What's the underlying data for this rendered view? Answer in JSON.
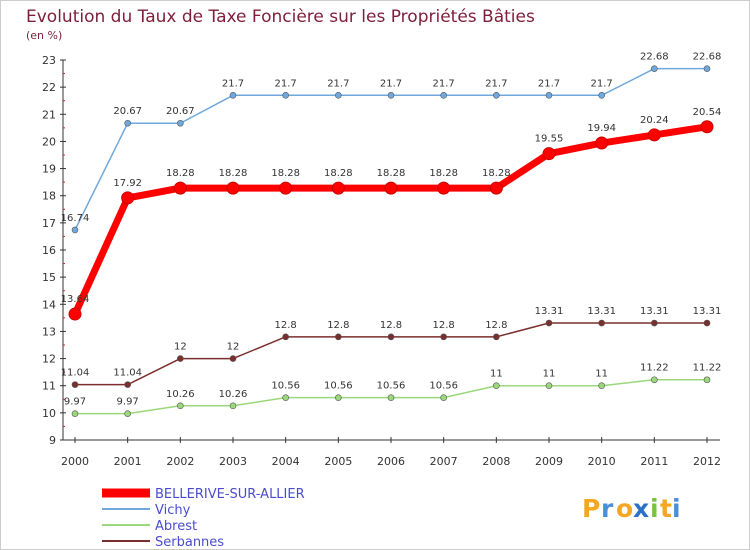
{
  "chart_data": {
    "type": "line",
    "title": "Evolution du Taux de Taxe Foncière sur les Propriétés Bâties",
    "subtitle": "(en %)",
    "x": [
      "2000",
      "2001",
      "2002",
      "2003",
      "2004",
      "2005",
      "2006",
      "2007",
      "2008",
      "2009",
      "2010",
      "2011",
      "2012"
    ],
    "ylim": [
      9,
      23
    ],
    "yticks": [
      "9",
      "10",
      "11",
      "12",
      "13",
      "14",
      "15",
      "16",
      "17",
      "18",
      "19",
      "20",
      "21",
      "22",
      "23"
    ],
    "series": [
      {
        "name": "BELLERIVE-SUR-ALLIER",
        "color": "#ff0000",
        "values": [
          13.64,
          17.92,
          18.28,
          18.28,
          18.28,
          18.28,
          18.28,
          18.28,
          18.28,
          19.55,
          19.94,
          20.24,
          20.54
        ],
        "labels": [
          "13.64",
          "17.92",
          "18.28",
          "18.28",
          "18.28",
          "18.28",
          "18.28",
          "18.28",
          "18.28",
          "19.55",
          "19.94",
          "20.24",
          "20.54"
        ]
      },
      {
        "name": "Vichy",
        "color": "#6fa8dc",
        "values": [
          16.74,
          20.67,
          20.67,
          21.7,
          21.7,
          21.7,
          21.7,
          21.7,
          21.7,
          21.7,
          21.7,
          22.68,
          22.68
        ],
        "labels": [
          "16.74",
          "20.67",
          "20.67",
          "21.7",
          "21.7",
          "21.7",
          "21.7",
          "21.7",
          "21.7",
          "21.7",
          "21.7",
          "22.68",
          "22.68"
        ]
      },
      {
        "name": "Abrest",
        "color": "#9bd77b",
        "values": [
          9.97,
          9.97,
          10.26,
          10.26,
          10.56,
          10.56,
          10.56,
          10.56,
          11,
          11,
          11,
          11.22,
          11.22
        ],
        "labels": [
          "9.97",
          "9.97",
          "10.26",
          "10.26",
          "10.56",
          "10.56",
          "10.56",
          "10.56",
          "11",
          "11",
          "11",
          "11.22",
          "11.22"
        ]
      },
      {
        "name": "Serbannes",
        "color": "#7b2e2e",
        "values": [
          11.04,
          11.04,
          12,
          12,
          12.8,
          12.8,
          12.8,
          12.8,
          12.8,
          13.31,
          13.31,
          13.31,
          13.31
        ],
        "labels": [
          "11.04",
          "11.04",
          "12",
          "12",
          "12.8",
          "12.8",
          "12.8",
          "12.8",
          "12.8",
          "13.31",
          "13.31",
          "13.31",
          "13.31"
        ]
      }
    ],
    "legend_position": "bottom-left",
    "grid": false
  },
  "logo": {
    "letters": [
      "P",
      "r",
      "o",
      "x",
      "i",
      "t",
      "i"
    ],
    "colors": [
      "#f5a623",
      "#4a90d9",
      "#f5a623",
      "#2a72c9",
      "#7cc242",
      "#f5a623",
      "#4a90d9"
    ]
  }
}
